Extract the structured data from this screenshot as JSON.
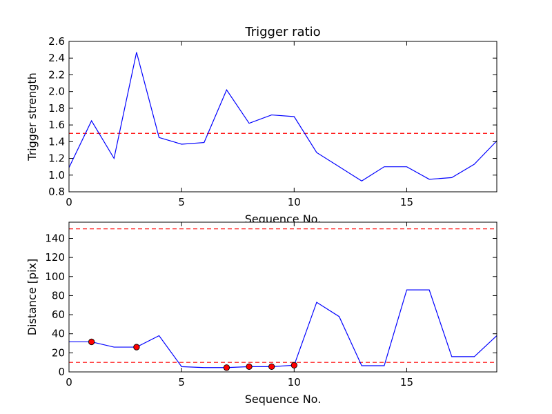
{
  "chart_data": [
    {
      "type": "line",
      "title": "Trigger ratio",
      "xlabel": "Sequence No.",
      "ylabel": "Trigger strength",
      "xlim": [
        0,
        19
      ],
      "ylim": [
        0.8,
        2.6
      ],
      "xticks": [
        0,
        5,
        10,
        15
      ],
      "xtick_labels": [
        "0",
        "5",
        "10",
        "15"
      ],
      "yticks": [
        0.8,
        1.0,
        1.2,
        1.4,
        1.6,
        1.8,
        2.0,
        2.2,
        2.4,
        2.6
      ],
      "ytick_labels": [
        "0.8",
        "1.0",
        "1.2",
        "1.4",
        "1.6",
        "1.8",
        "2.0",
        "2.2",
        "2.4",
        "2.6"
      ],
      "grid": false,
      "series": [
        {
          "color": "#0000ff",
          "style": "solid",
          "x": [
            0,
            1,
            2,
            3,
            4,
            5,
            6,
            7,
            8,
            9,
            10,
            11,
            12,
            13,
            14,
            15,
            16,
            17,
            18,
            19
          ],
          "y": [
            1.09,
            1.65,
            1.2,
            2.47,
            1.45,
            1.37,
            1.39,
            2.02,
            1.62,
            1.72,
            1.7,
            1.27,
            1.1,
            0.93,
            1.1,
            1.1,
            0.95,
            0.97,
            1.13,
            1.41
          ]
        }
      ],
      "reference_lines": [
        {
          "y": 1.5,
          "color": "#ff0000",
          "style": "dashed"
        }
      ]
    },
    {
      "type": "line",
      "title": "",
      "xlabel": "Sequence No.",
      "ylabel": "Distance [pix]",
      "xlim": [
        0,
        19
      ],
      "ylim": [
        0,
        157
      ],
      "xticks": [
        0,
        5,
        10,
        15
      ],
      "xtick_labels": [
        "0",
        "5",
        "10",
        "15"
      ],
      "yticks": [
        0,
        20,
        40,
        60,
        80,
        100,
        120,
        140
      ],
      "ytick_labels": [
        "0",
        "20",
        "40",
        "60",
        "80",
        "100",
        "120",
        "140"
      ],
      "grid": false,
      "series": [
        {
          "color": "#0000ff",
          "style": "solid",
          "x": [
            0,
            1,
            2,
            3,
            4,
            5,
            6,
            7,
            8,
            9,
            10,
            11,
            12,
            13,
            14,
            15,
            16,
            17,
            18,
            19
          ],
          "y": [
            31.5,
            31.5,
            26,
            26,
            38,
            5.5,
            4.5,
            4.5,
            5.5,
            5.5,
            7,
            73,
            58,
            6.5,
            6.5,
            86,
            86,
            16,
            16,
            38
          ]
        }
      ],
      "markers": {
        "color": "#ff0000",
        "x": [
          1,
          3,
          7,
          8,
          9,
          10
        ],
        "y": [
          31.5,
          26,
          4.5,
          5.5,
          5.5,
          7
        ]
      },
      "reference_lines": [
        {
          "y": 150,
          "color": "#ff0000",
          "style": "dashed"
        },
        {
          "y": 10,
          "color": "#ff0000",
          "style": "dashed"
        }
      ]
    }
  ]
}
